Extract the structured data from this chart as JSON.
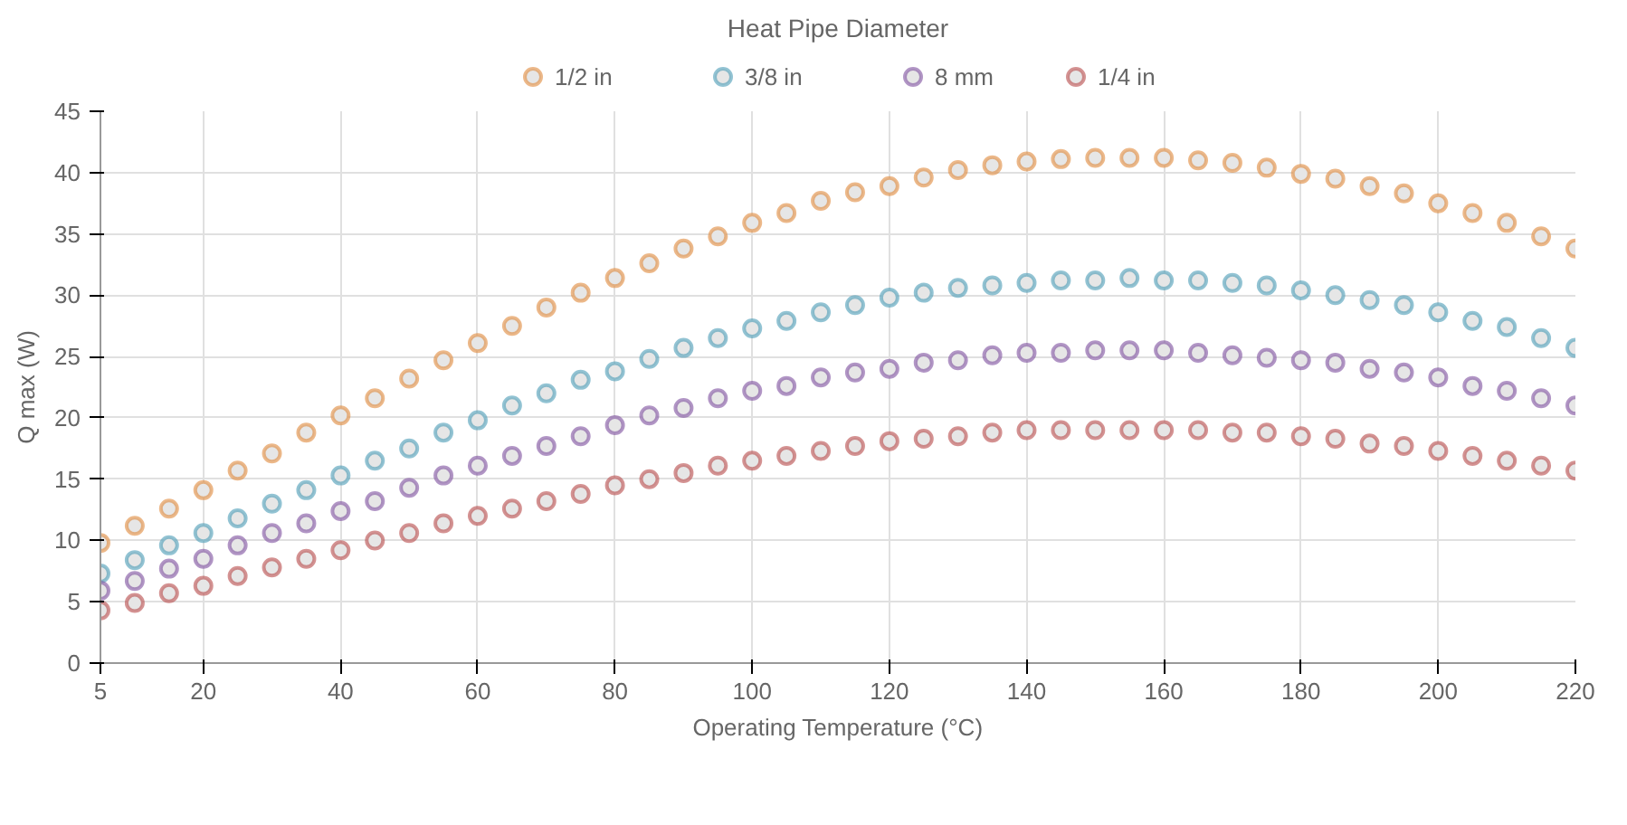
{
  "chart_data": {
    "type": "scatter",
    "title": "Heat Pipe Diameter",
    "xlabel": "Operating Temperature (°C)",
    "ylabel": "Q max (W)",
    "x": [
      5,
      10,
      15,
      20,
      25,
      30,
      35,
      40,
      45,
      50,
      55,
      60,
      65,
      70,
      75,
      80,
      85,
      90,
      95,
      100,
      105,
      110,
      115,
      120,
      125,
      130,
      135,
      140,
      145,
      150,
      155,
      160,
      165,
      170,
      175,
      180,
      185,
      190,
      195,
      200,
      205,
      210,
      215,
      220
    ],
    "series": [
      {
        "name": "1/2 in",
        "color": "#e0883a",
        "values": [
          9.8,
          11.2,
          12.6,
          14.1,
          15.7,
          17.1,
          18.8,
          20.2,
          21.6,
          23.2,
          24.7,
          26.1,
          27.5,
          29.0,
          30.2,
          31.4,
          32.6,
          33.8,
          34.8,
          35.9,
          36.7,
          37.7,
          38.4,
          38.9,
          39.6,
          40.2,
          40.6,
          40.9,
          41.1,
          41.2,
          41.2,
          41.2,
          41.0,
          40.8,
          40.4,
          39.9,
          39.5,
          38.9,
          38.3,
          37.5,
          36.7,
          35.9,
          34.8,
          33.8
        ]
      },
      {
        "name": "3/8 in",
        "color": "#4a9bb5",
        "values": [
          7.3,
          8.4,
          9.6,
          10.6,
          11.8,
          13.0,
          14.1,
          15.3,
          16.5,
          17.5,
          18.8,
          19.8,
          21.0,
          22.0,
          23.1,
          23.8,
          24.8,
          25.7,
          26.5,
          27.3,
          27.9,
          28.6,
          29.2,
          29.8,
          30.2,
          30.6,
          30.8,
          31.0,
          31.2,
          31.2,
          31.4,
          31.2,
          31.2,
          31.0,
          30.8,
          30.4,
          30.0,
          29.6,
          29.2,
          28.6,
          27.9,
          27.4,
          26.5,
          25.7
        ]
      },
      {
        "name": "8 mm",
        "color": "#7d4f9e",
        "values": [
          5.9,
          6.7,
          7.7,
          8.5,
          9.6,
          10.6,
          11.4,
          12.4,
          13.2,
          14.3,
          15.3,
          16.1,
          16.9,
          17.7,
          18.5,
          19.4,
          20.2,
          20.8,
          21.6,
          22.2,
          22.6,
          23.3,
          23.7,
          24.0,
          24.5,
          24.7,
          25.1,
          25.3,
          25.3,
          25.5,
          25.5,
          25.5,
          25.3,
          25.1,
          24.9,
          24.7,
          24.5,
          24.0,
          23.7,
          23.3,
          22.6,
          22.2,
          21.6,
          21.0
        ]
      },
      {
        "name": "1/4 in",
        "color": "#b84a4a",
        "values": [
          4.3,
          4.9,
          5.7,
          6.3,
          7.1,
          7.8,
          8.5,
          9.2,
          10.0,
          10.6,
          11.4,
          12.0,
          12.6,
          13.2,
          13.8,
          14.5,
          15.0,
          15.5,
          16.1,
          16.5,
          16.9,
          17.3,
          17.7,
          18.1,
          18.3,
          18.5,
          18.8,
          19.0,
          19.0,
          19.0,
          19.0,
          19.0,
          19.0,
          18.8,
          18.8,
          18.5,
          18.3,
          17.9,
          17.7,
          17.3,
          16.9,
          16.5,
          16.1,
          15.7
        ]
      }
    ],
    "xlim": [
      5,
      220
    ],
    "xticks": [
      5,
      20,
      40,
      60,
      80,
      100,
      120,
      140,
      160,
      180,
      200,
      220
    ],
    "ylim": [
      0,
      45
    ],
    "yticks": [
      0,
      5,
      10,
      15,
      20,
      25,
      30,
      35,
      40,
      45
    ],
    "grid": true,
    "legend": "top",
    "marker": "circle"
  }
}
